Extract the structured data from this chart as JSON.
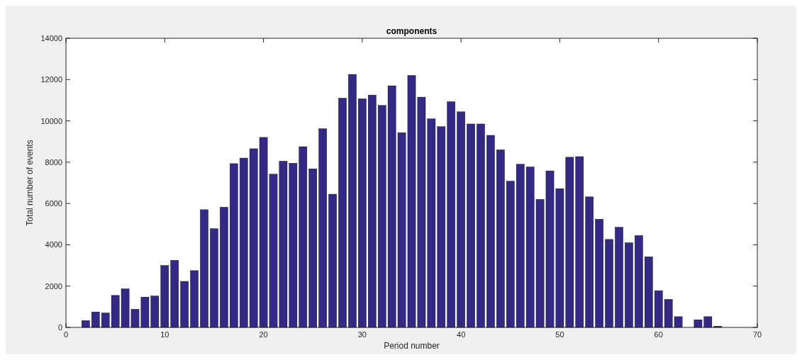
{
  "chart_data": {
    "type": "bar",
    "title": "components",
    "xlabel": "Period number",
    "ylabel": "Total number of events",
    "x": [
      2,
      3,
      4,
      5,
      6,
      7,
      8,
      9,
      10,
      11,
      12,
      13,
      14,
      15,
      16,
      17,
      18,
      19,
      20,
      21,
      22,
      23,
      24,
      25,
      26,
      27,
      28,
      29,
      30,
      31,
      32,
      33,
      34,
      35,
      36,
      37,
      38,
      39,
      40,
      41,
      42,
      43,
      44,
      45,
      46,
      47,
      48,
      49,
      50,
      51,
      52,
      53,
      54,
      55,
      56,
      57,
      58,
      59,
      60,
      61,
      62,
      63,
      64,
      65,
      66
    ],
    "values": [
      330,
      750,
      700,
      1550,
      1870,
      880,
      1470,
      1520,
      3000,
      3250,
      2230,
      2750,
      5700,
      4780,
      5820,
      7930,
      8200,
      8650,
      9200,
      7420,
      8050,
      7950,
      8750,
      7680,
      9620,
      6450,
      11100,
      12250,
      11070,
      11250,
      10750,
      11700,
      9430,
      12200,
      11150,
      10100,
      9720,
      10930,
      10440,
      9850,
      9850,
      9300,
      8600,
      7080,
      7900,
      7770,
      6200,
      7580,
      6720,
      8240,
      8270,
      6320,
      5240,
      4260,
      4850,
      4100,
      4450,
      3420,
      1780,
      1360,
      520,
      0,
      370,
      520,
      60
    ],
    "color": "#342a85",
    "xlim": [
      0,
      70
    ],
    "xticks": [
      0,
      10,
      20,
      30,
      40,
      50,
      60,
      70
    ],
    "ylim": [
      0,
      14000
    ],
    "yticks": [
      0,
      2000,
      4000,
      6000,
      8000,
      10000,
      12000,
      14000
    ]
  }
}
